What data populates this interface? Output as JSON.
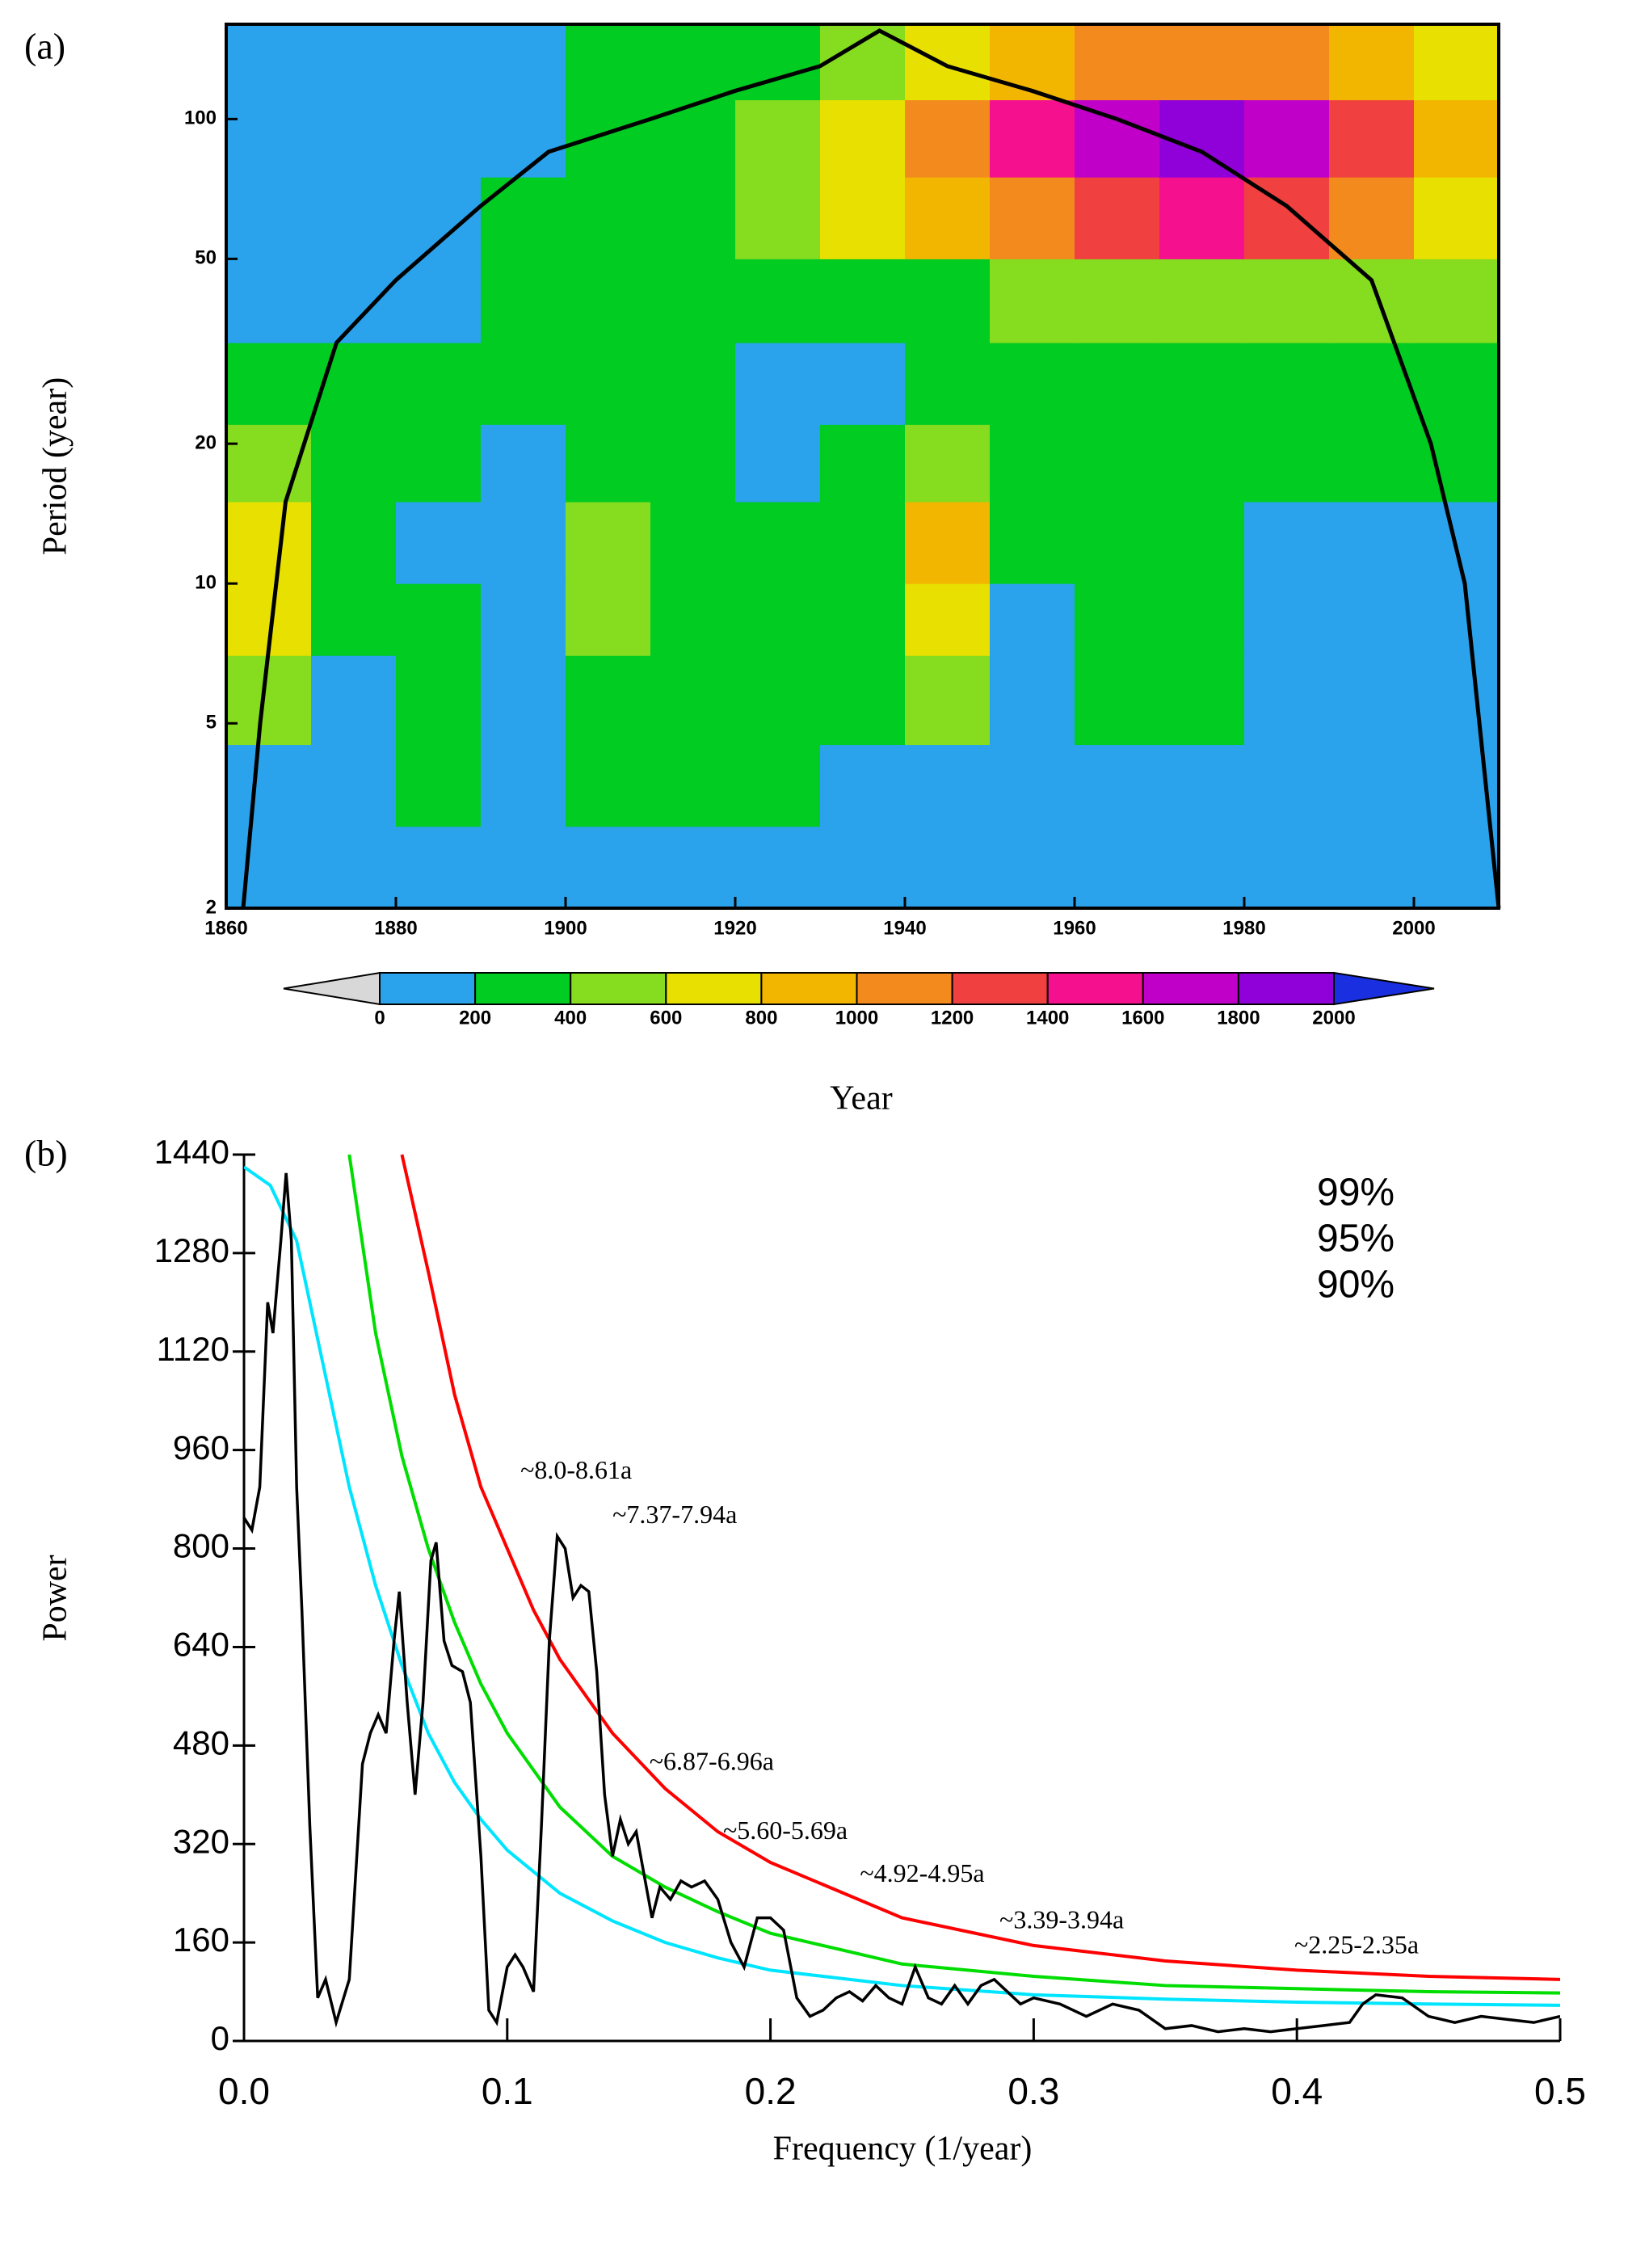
{
  "chart_data": [
    {
      "type": "heatmap",
      "panel_label": "(a)",
      "xlabel": "Year",
      "ylabel": "Period (year)",
      "xlim": [
        1860,
        2010
      ],
      "xticks": [
        1860,
        1880,
        1900,
        1920,
        1940,
        1960,
        1980,
        2000
      ],
      "ylim": [
        2,
        160
      ],
      "yticks": [
        2,
        5,
        10,
        20,
        50,
        100
      ],
      "log_y": true,
      "x_edges": [
        1860,
        1870,
        1880,
        1890,
        1900,
        1910,
        1920,
        1930,
        1940,
        1950,
        1960,
        1970,
        1980,
        1990,
        2000,
        2010
      ],
      "y_edges": [
        2,
        3,
        4.5,
        7,
        10,
        15,
        22,
        33,
        50,
        75,
        110,
        160
      ],
      "z": [
        [
          100,
          100,
          120,
          80,
          120,
          140,
          100,
          100,
          80,
          60,
          100,
          100,
          60,
          60,
          60
        ],
        [
          150,
          150,
          250,
          100,
          250,
          250,
          250,
          150,
          100,
          80,
          100,
          150,
          80,
          80,
          80
        ],
        [
          400,
          150,
          300,
          150,
          350,
          300,
          300,
          250,
          400,
          100,
          250,
          300,
          100,
          80,
          80
        ],
        [
          650,
          250,
          250,
          100,
          450,
          250,
          250,
          250,
          700,
          150,
          250,
          300,
          100,
          80,
          80
        ],
        [
          700,
          300,
          150,
          100,
          450,
          200,
          200,
          300,
          850,
          200,
          250,
          250,
          150,
          100,
          80
        ],
        [
          500,
          250,
          250,
          150,
          350,
          250,
          150,
          300,
          450,
          250,
          250,
          250,
          200,
          200,
          250
        ],
        [
          300,
          200,
          250,
          250,
          250,
          250,
          100,
          150,
          200,
          250,
          250,
          250,
          250,
          250,
          300
        ],
        [
          150,
          100,
          100,
          250,
          250,
          250,
          300,
          350,
          350,
          400,
          450,
          500,
          500,
          450,
          400
        ],
        [
          100,
          80,
          100,
          250,
          250,
          300,
          450,
          650,
          850,
          1100,
          1300,
          1400,
          1300,
          1000,
          700
        ],
        [
          80,
          80,
          100,
          150,
          200,
          250,
          450,
          700,
          1000,
          1400,
          1700,
          1850,
          1700,
          1200,
          800
        ],
        [
          80,
          80,
          80,
          100,
          200,
          250,
          350,
          550,
          750,
          950,
          1050,
          1100,
          1000,
          800,
          600
        ]
      ],
      "coi": {
        "color": "#000000",
        "x": [
          1862,
          1864,
          1867,
          1873,
          1880,
          1890,
          1898,
          1910,
          1920,
          1930,
          1937,
          1945,
          1955,
          1965,
          1975,
          1985,
          1995,
          2002,
          2006,
          2010
        ],
        "y": [
          2,
          5,
          15,
          33,
          45,
          65,
          85,
          100,
          115,
          130,
          155,
          130,
          115,
          100,
          85,
          65,
          45,
          20,
          10,
          2
        ]
      },
      "colorbar": {
        "levels": [
          0,
          200,
          400,
          600,
          800,
          1000,
          1200,
          1400,
          1600,
          1800,
          2000
        ],
        "colors": [
          "#2aa3ec",
          "#00cc22",
          "#86dc1e",
          "#e8e000",
          "#f2b600",
          "#f28a1e",
          "#f04040",
          "#f5108e",
          "#c000c8",
          "#9000d8"
        ],
        "extend_colors": [
          "#d8d8d8",
          "#1a2fe0"
        ]
      }
    },
    {
      "type": "line",
      "panel_label": "(b)",
      "xlabel": "Frequency (1/year)",
      "ylabel": "Power",
      "xlim": [
        0,
        0.5
      ],
      "xticks": [
        {
          "value": 0,
          "label": "0.0"
        },
        0.1,
        0.2,
        0.3,
        0.4,
        0.5
      ],
      "ylim": [
        0,
        1440
      ],
      "yticks": [
        0,
        160,
        320,
        480,
        640,
        800,
        960,
        1120,
        1280,
        1440
      ],
      "color": "#000000",
      "x": [
        0,
        0.003,
        0.006,
        0.009,
        0.011,
        0.014,
        0.016,
        0.018,
        0.02,
        0.022,
        0.025,
        0.028,
        0.031,
        0.035,
        0.04,
        0.045,
        0.048,
        0.051,
        0.054,
        0.057,
        0.059,
        0.062,
        0.065,
        0.068,
        0.071,
        0.073,
        0.076,
        0.079,
        0.083,
        0.086,
        0.09,
        0.093,
        0.096,
        0.1,
        0.103,
        0.106,
        0.11,
        0.113,
        0.116,
        0.119,
        0.122,
        0.125,
        0.128,
        0.131,
        0.134,
        0.137,
        0.14,
        0.143,
        0.146,
        0.149,
        0.152,
        0.155,
        0.158,
        0.162,
        0.166,
        0.17,
        0.175,
        0.18,
        0.185,
        0.19,
        0.195,
        0.2,
        0.205,
        0.21,
        0.215,
        0.22,
        0.225,
        0.23,
        0.235,
        0.24,
        0.245,
        0.25,
        0.255,
        0.26,
        0.265,
        0.27,
        0.275,
        0.28,
        0.285,
        0.29,
        0.295,
        0.3,
        0.31,
        0.32,
        0.33,
        0.34,
        0.35,
        0.36,
        0.37,
        0.38,
        0.39,
        0.4,
        0.41,
        0.42,
        0.425,
        0.43,
        0.44,
        0.45,
        0.46,
        0.47,
        0.48,
        0.49,
        0.5
      ],
      "values": [
        850,
        830,
        900,
        1200,
        1150,
        1300,
        1410,
        1300,
        900,
        700,
        350,
        70,
        100,
        30,
        100,
        450,
        500,
        530,
        500,
        650,
        730,
        550,
        400,
        550,
        780,
        810,
        650,
        610,
        600,
        550,
        300,
        50,
        30,
        120,
        140,
        120,
        80,
        350,
        650,
        820,
        800,
        720,
        740,
        730,
        600,
        400,
        300,
        360,
        320,
        340,
        270,
        200,
        250,
        230,
        260,
        250,
        260,
        230,
        160,
        120,
        200,
        200,
        180,
        70,
        40,
        50,
        70,
        80,
        65,
        90,
        70,
        60,
        120,
        70,
        60,
        90,
        60,
        90,
        100,
        80,
        60,
        70,
        60,
        40,
        60,
        50,
        20,
        25,
        15,
        20,
        15,
        20,
        25,
        30,
        60,
        75,
        70,
        40,
        30,
        40,
        35,
        30,
        40
      ],
      "series": [
        {
          "name": "99%",
          "color": "#ff0000",
          "x": [
            0.06,
            0.07,
            0.08,
            0.09,
            0.1,
            0.11,
            0.12,
            0.14,
            0.16,
            0.18,
            0.2,
            0.25,
            0.3,
            0.35,
            0.4,
            0.45,
            0.5
          ],
          "values": [
            1440,
            1250,
            1050,
            900,
            800,
            700,
            620,
            500,
            410,
            340,
            290,
            200,
            155,
            130,
            115,
            105,
            100
          ]
        },
        {
          "name": "95%",
          "color": "#00dd00",
          "x": [
            0.04,
            0.05,
            0.06,
            0.07,
            0.08,
            0.09,
            0.1,
            0.12,
            0.14,
            0.16,
            0.18,
            0.2,
            0.25,
            0.3,
            0.35,
            0.4,
            0.45,
            0.5
          ],
          "values": [
            1440,
            1150,
            950,
            800,
            680,
            580,
            500,
            380,
            300,
            250,
            210,
            175,
            125,
            105,
            90,
            85,
            80,
            78
          ]
        },
        {
          "name": "90%",
          "color": "#00e5ff",
          "x": [
            0,
            0.01,
            0.02,
            0.03,
            0.04,
            0.05,
            0.06,
            0.07,
            0.08,
            0.09,
            0.1,
            0.12,
            0.14,
            0.16,
            0.18,
            0.2,
            0.25,
            0.3,
            0.35,
            0.4,
            0.45,
            0.5
          ],
          "values": [
            1420,
            1390,
            1300,
            1100,
            900,
            740,
            610,
            500,
            420,
            360,
            310,
            240,
            195,
            160,
            135,
            115,
            90,
            75,
            68,
            63,
            60,
            58
          ]
        }
      ],
      "legend": "upper right",
      "annotations": [
        {
          "text": "~8.0-8.61a",
          "x": 0.105,
          "y": 923
        },
        {
          "text": "~7.37-7.94a",
          "x": 0.14,
          "y": 851
        },
        {
          "text": "~6.87-6.96a",
          "x": 0.154,
          "y": 450
        },
        {
          "text": "~5.60-5.69a",
          "x": 0.182,
          "y": 338
        },
        {
          "text": "~4.92-4.95a",
          "x": 0.234,
          "y": 268
        },
        {
          "text": "~3.39-3.94a",
          "x": 0.287,
          "y": 193
        },
        {
          "text": "~2.25-2.35a",
          "x": 0.399,
          "y": 152
        }
      ]
    }
  ]
}
